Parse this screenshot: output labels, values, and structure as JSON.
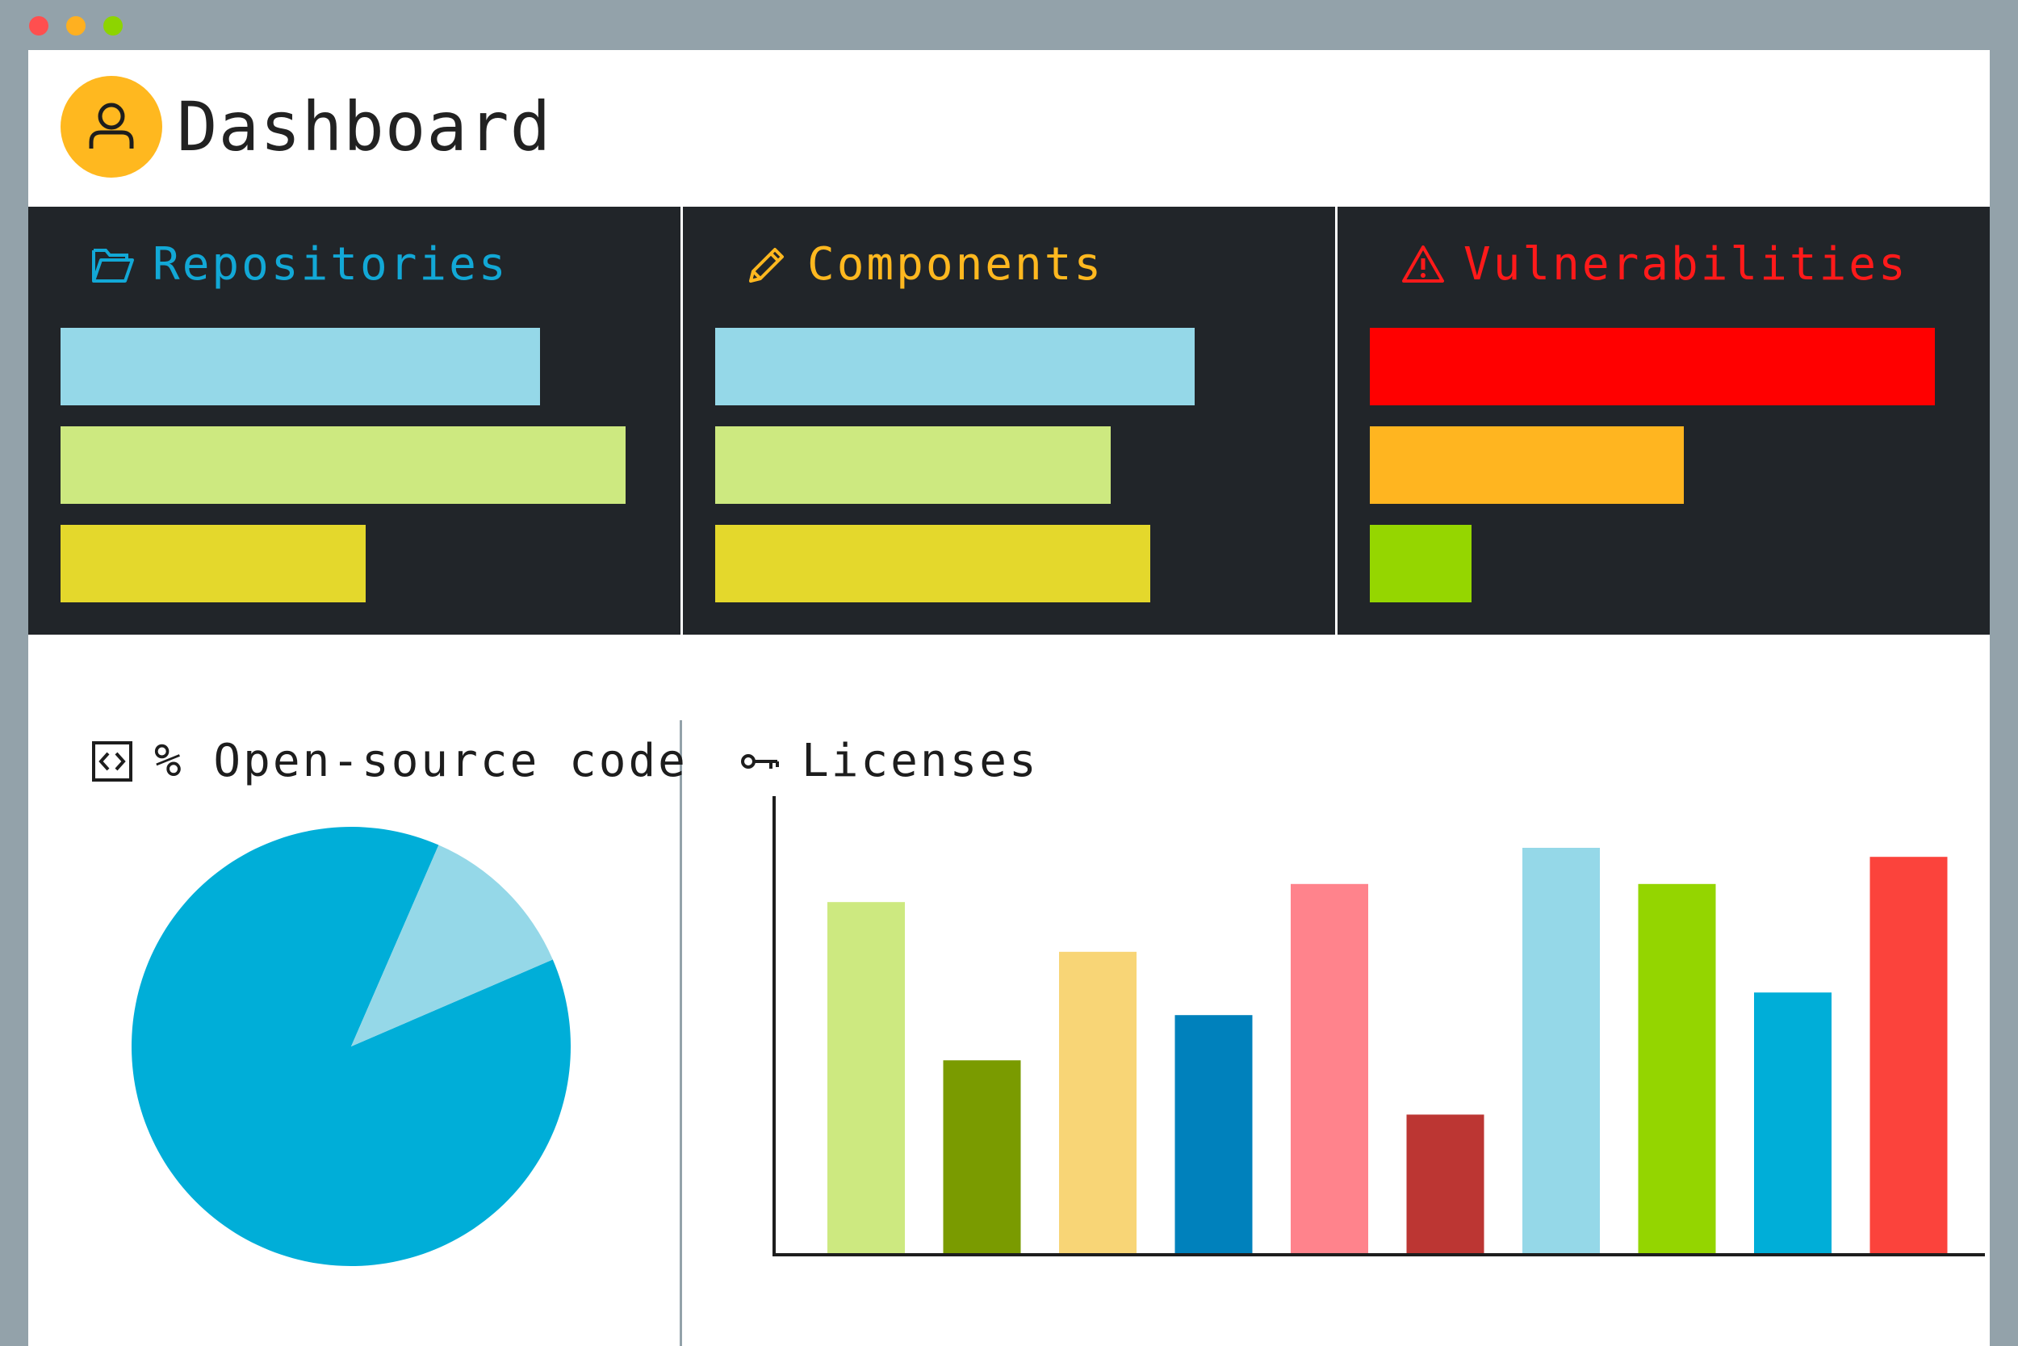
{
  "window": {
    "controls": [
      {
        "name": "close",
        "color": "#ff4f4f"
      },
      {
        "name": "minimize",
        "color": "#ffb020"
      },
      {
        "name": "maximize",
        "color": "#8dd400"
      }
    ]
  },
  "header": {
    "title": "Dashboard",
    "avatar_icon": "user-icon",
    "avatar_color": "#ffb81f"
  },
  "panels": [
    {
      "id": "repositories",
      "label": "Repositories",
      "icon": "folder-icon",
      "color": "#12a8d6",
      "bars": [
        {
          "value": 0.848,
          "color": "#95d8e8"
        },
        {
          "value": 1.0,
          "color": "#cde980"
        },
        {
          "value": 0.54,
          "color": "#e4d82c"
        }
      ]
    },
    {
      "id": "components",
      "label": "Components",
      "icon": "pencil-icon",
      "color": "#ffb81f",
      "bars": [
        {
          "value": 0.848,
          "color": "#95d8e8"
        },
        {
          "value": 0.7,
          "color": "#cde980"
        },
        {
          "value": 0.77,
          "color": "#e4d82c"
        }
      ]
    },
    {
      "id": "vulnerabilities",
      "label": "Vulnerabilities",
      "icon": "warning-icon",
      "color": "#ff1a1a",
      "bars": [
        {
          "value": 1.0,
          "color": "#ff0000"
        },
        {
          "value": 0.555,
          "color": "#ffb520"
        },
        {
          "value": 0.18,
          "color": "#95d600"
        }
      ]
    }
  ],
  "opensource": {
    "label": "% Open-source code",
    "icon": "code-icon"
  },
  "licenses": {
    "label": "Licenses",
    "icon": "key-icon"
  },
  "chart_data": [
    {
      "type": "pie",
      "values": [
        88,
        12
      ],
      "colors": [
        "#00aed8",
        "#95d8e8"
      ]
    },
    {
      "type": "bar",
      "values": [
        78,
        43,
        67,
        53,
        82,
        31,
        90,
        82,
        58,
        88
      ],
      "colors": [
        "#cde980",
        "#7a9b00",
        "#f8d576",
        "#0081bc",
        "#ff838c",
        "#bc3633",
        "#95d8e8",
        "#94d500",
        "#00aed8",
        "#fb433c"
      ],
      "ylim": [
        0,
        100
      ]
    }
  ]
}
